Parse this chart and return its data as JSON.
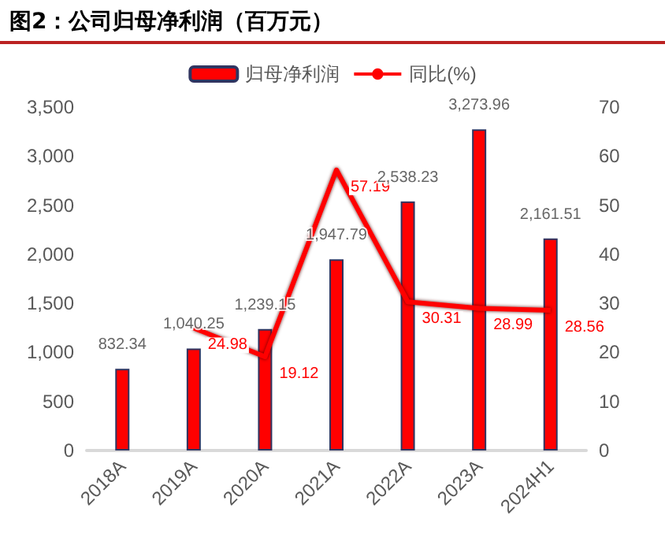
{
  "chart_data": {
    "type": "bar",
    "title": "图2：公司归母净利润（百万元）",
    "categories": [
      "2018A",
      "2019A",
      "2020A",
      "2021A",
      "2022A",
      "2023A",
      "2024H1"
    ],
    "series": [
      {
        "name": "归母净利润",
        "color": "#ff0000",
        "values": [
          832.34,
          1040.25,
          1239.15,
          1947.79,
          2538.23,
          3273.96,
          2161.51
        ],
        "value_labels": [
          "832.34",
          "1,040.25",
          "1,239.15",
          "1,947.79",
          "2,538.23",
          "3,273.96",
          "2,161.51"
        ]
      },
      {
        "name": "同比(%)",
        "type": "line",
        "axis": "y2",
        "color": "#ff0000",
        "values": [
          null,
          24.98,
          19.12,
          57.19,
          30.31,
          28.99,
          28.56
        ]
      }
    ],
    "ylim": [
      0,
      3500
    ],
    "yticks": [
      0,
      500,
      {
        "value": 1000,
        "label": "1,000"
      },
      {
        "value": 1500,
        "label": "1,500"
      },
      {
        "value": 2000,
        "label": "2,000"
      },
      {
        "value": 2500,
        "label": "2,500"
      },
      {
        "value": 3000,
        "label": "3,000"
      },
      {
        "value": 3500,
        "label": "3,500"
      }
    ],
    "y2lim": [
      0,
      70
    ],
    "y2ticks": [
      0,
      10,
      20,
      30,
      40,
      50,
      60,
      70
    ],
    "data_labels": true,
    "legend": "top",
    "grid": false,
    "marker": "none"
  }
}
